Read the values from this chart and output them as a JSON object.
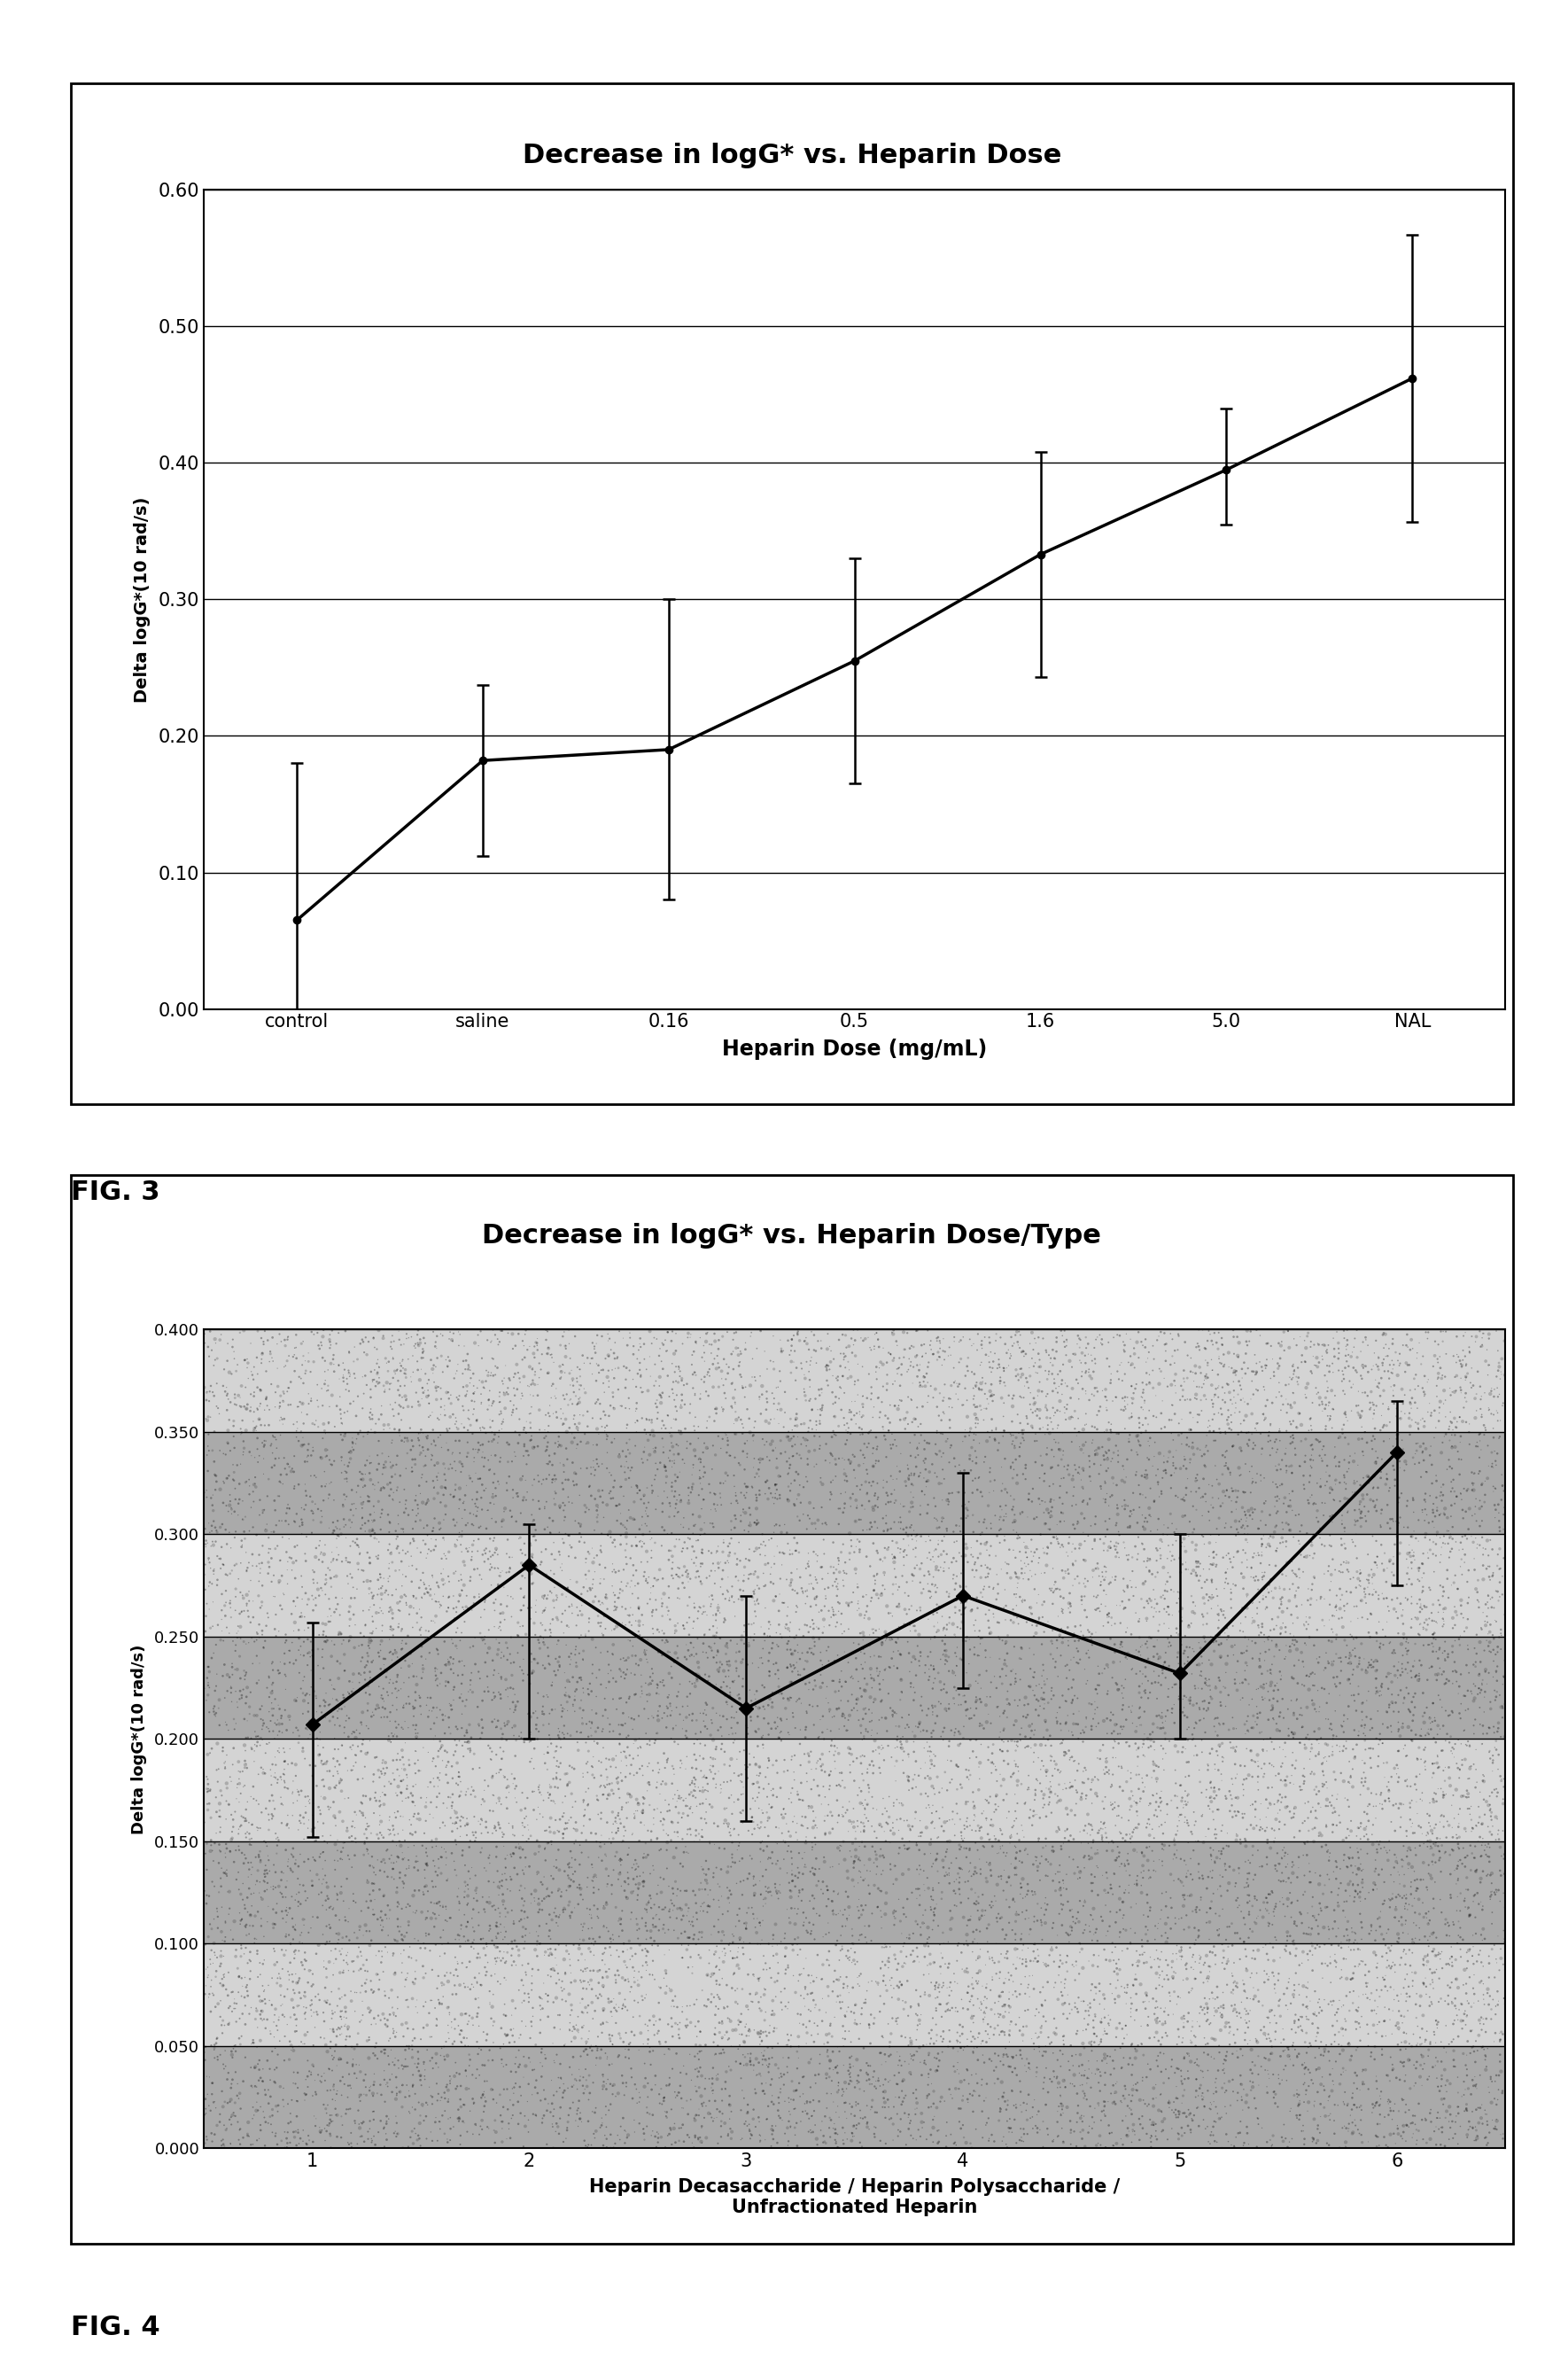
{
  "fig3": {
    "title": "Decrease in logG* vs. Heparin Dose",
    "xlabel": "Heparin Dose (mg/mL)",
    "ylabel": "Delta logG*(10 rad/s)",
    "x_labels": [
      "control",
      "saline",
      "0.16",
      "0.5",
      "1.6",
      "5.0",
      "NAL"
    ],
    "y_values": [
      0.065,
      0.182,
      0.19,
      0.255,
      0.333,
      0.395,
      0.462
    ],
    "y_err_upper": [
      0.115,
      0.055,
      0.11,
      0.075,
      0.075,
      0.045,
      0.105
    ],
    "y_err_lower": [
      0.065,
      0.07,
      0.11,
      0.09,
      0.09,
      0.04,
      0.105
    ],
    "ylim": [
      0.0,
      0.6
    ],
    "yticks": [
      0.0,
      0.1,
      0.2,
      0.3,
      0.4,
      0.5,
      0.6
    ]
  },
  "fig4": {
    "title": "Decrease in logG* vs. Heparin Dose/Type",
    "xlabel": "Heparin Decasaccharide / Heparin Polysaccharide /\nUnfractionated Heparin",
    "ylabel": "Delta logG*(10 rad/s)",
    "x_labels": [
      "1",
      "2",
      "3",
      "4",
      "5",
      "6"
    ],
    "y_values": [
      0.207,
      0.285,
      0.215,
      0.27,
      0.232,
      0.34
    ],
    "y_err_upper": [
      0.05,
      0.02,
      0.055,
      0.06,
      0.068,
      0.025
    ],
    "y_err_lower": [
      0.055,
      0.085,
      0.055,
      0.045,
      0.032,
      0.065
    ],
    "ylim": [
      0.0,
      0.4
    ],
    "yticks": [
      0.0,
      0.05,
      0.1,
      0.15,
      0.2,
      0.25,
      0.3,
      0.35,
      0.4
    ]
  },
  "background_color": "#ffffff",
  "plot_bg_color": "#ffffff",
  "line_color": "#000000",
  "fig3_label": "FIG. 3",
  "fig4_label": "FIG. 4",
  "fig4_dark_band": "#aaaaaa",
  "fig4_light_band": "#d4d4d4"
}
